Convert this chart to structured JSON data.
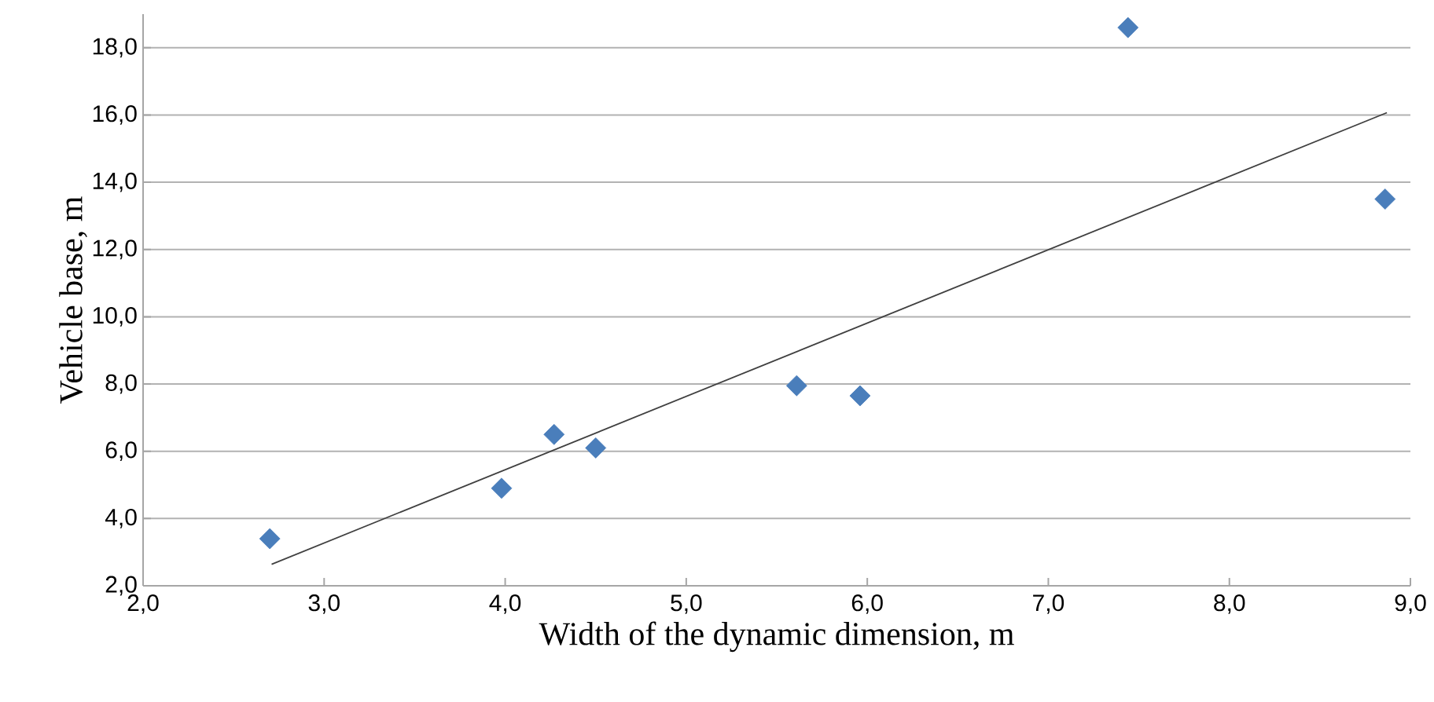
{
  "chart_data": {
    "type": "scatter",
    "xlabel": "Width of the dynamic dimension, m",
    "ylabel": "Vehicle base, m",
    "xlim": [
      2,
      9
    ],
    "ylim": [
      2,
      19
    ],
    "xticks": [
      {
        "value": 2,
        "label": "2,0"
      },
      {
        "value": 3,
        "label": "3,0"
      },
      {
        "value": 4,
        "label": "4,0"
      },
      {
        "value": 5,
        "label": "5,0"
      },
      {
        "value": 6,
        "label": "6,0"
      },
      {
        "value": 7,
        "label": "7,0"
      },
      {
        "value": 8,
        "label": "8,0"
      },
      {
        "value": 9,
        "label": "9,0"
      }
    ],
    "yticks": [
      {
        "value": 2,
        "label": "2,0"
      },
      {
        "value": 4,
        "label": "4,0"
      },
      {
        "value": 6,
        "label": "6,0"
      },
      {
        "value": 8,
        "label": "8,0"
      },
      {
        "value": 10,
        "label": "10,0"
      },
      {
        "value": 12,
        "label": "12,0"
      },
      {
        "value": 14,
        "label": "14,0"
      },
      {
        "value": 16,
        "label": "16,0"
      },
      {
        "value": 18,
        "label": "18,0"
      }
    ],
    "grid": "y",
    "marker": "diamond",
    "series": [
      {
        "color": "#4a7ebb",
        "x": [
          2.7,
          3.98,
          4.27,
          4.5,
          5.61,
          5.96,
          7.44,
          8.86
        ],
        "values": [
          3.4,
          4.9,
          6.5,
          6.1,
          7.95,
          7.65,
          18.6,
          13.5
        ]
      },
      {
        "type": "line",
        "color": "#404040",
        "marker": "none",
        "line_style": "solid",
        "x": [
          2.71,
          8.87
        ],
        "values": [
          2.64,
          16.07
        ]
      }
    ]
  }
}
